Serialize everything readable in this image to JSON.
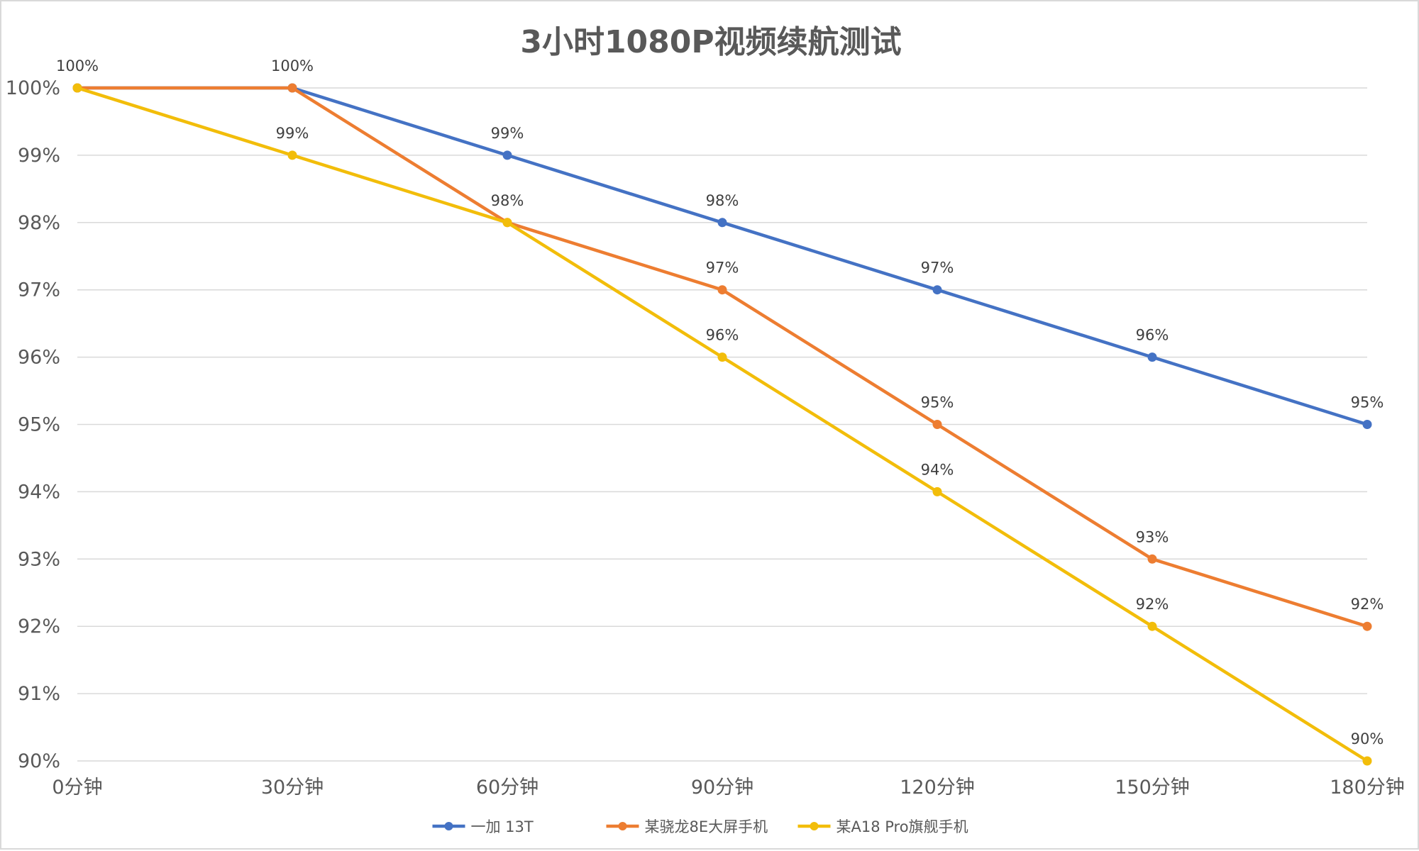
{
  "chart_data": {
    "type": "line",
    "title": "3小时1080P视频续航测试",
    "xlabel": "",
    "ylabel": "",
    "categories": [
      "0分钟",
      "30分钟",
      "60分钟",
      "90分钟",
      "120分钟",
      "150分钟",
      "180分钟"
    ],
    "ylim": [
      90,
      100
    ],
    "yticks": [
      100,
      99,
      98,
      97,
      96,
      95,
      94,
      93,
      92,
      91,
      90
    ],
    "ytick_labels": [
      "100%",
      "99%",
      "98%",
      "97%",
      "96%",
      "95%",
      "94%",
      "93%",
      "92%",
      "91%",
      "90%"
    ],
    "grid": true,
    "legend_position": "bottom",
    "series": [
      {
        "name": "一加 13T",
        "color": "#4472c4",
        "values": [
          100,
          100,
          99,
          98,
          97,
          96,
          95
        ],
        "labels": [
          "100%",
          "100%",
          "99%",
          "98%",
          "97%",
          "96%",
          "95%"
        ]
      },
      {
        "name": "某骁龙8E大屏手机",
        "color": "#ed7d31",
        "values": [
          100,
          100,
          98,
          97,
          95,
          93,
          92
        ],
        "labels": [
          "",
          "",
          "98%",
          "97%",
          "95%",
          "93%",
          "92%"
        ]
      },
      {
        "name": "某A18 Pro旗舰手机",
        "color": "#f2bd0a",
        "values": [
          100,
          99,
          98,
          96,
          94,
          92,
          90
        ],
        "labels": [
          "",
          "99%",
          "",
          "96%",
          "94%",
          "92%",
          "90%"
        ]
      }
    ]
  }
}
